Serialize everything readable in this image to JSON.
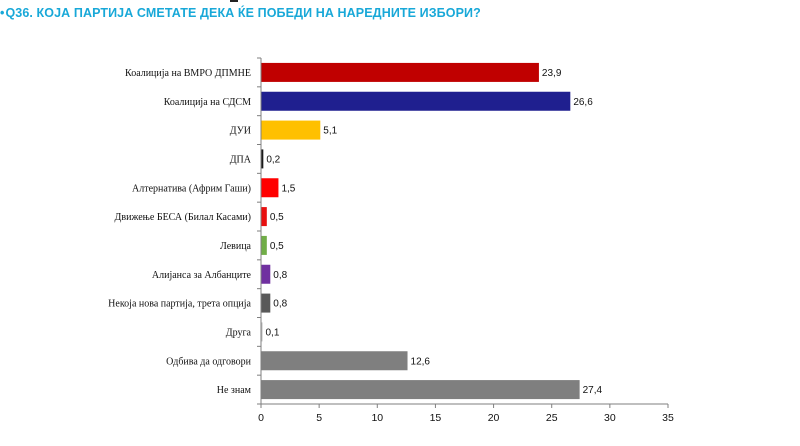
{
  "header": {
    "bullet": "•",
    "title": "Q36. КОЈА ПАРТИЈА СМЕТАТЕ ДЕКА ЌЕ ПОБЕДИ НА НАРЕДНИТЕ ИЗБОРИ?"
  },
  "colors": {
    "title": "#18a8d8",
    "axis": "#7f7f7f"
  },
  "chart_data": {
    "type": "bar",
    "orientation": "horizontal",
    "title": "Q36. КОЈА ПАРТИЈА СМЕТАТЕ ДЕКА ЌЕ ПОБЕДИ НА НАРЕДНИТЕ ИЗБОРИ?",
    "xlabel": "",
    "ylabel": "",
    "xlim": [
      0,
      35
    ],
    "xticks": [
      0,
      5,
      10,
      15,
      20,
      25,
      30,
      35
    ],
    "grid": false,
    "categories": [
      "Коалиција на ВМРО ДПМНЕ",
      "Коалиција на СДСМ",
      "ДУИ",
      "ДПА",
      "Алтернатива (Африм Гаши)",
      "Движење БЕСА (Билал Касами)",
      "Левица",
      "Алијанса за Албанците",
      "Некоја нова партија, трета опција",
      "Друга",
      "Одбива да одговори",
      "Не знам"
    ],
    "values": [
      23.9,
      26.6,
      5.1,
      0.2,
      1.5,
      0.5,
      0.5,
      0.8,
      0.8,
      0.1,
      12.6,
      27.4
    ],
    "value_labels": [
      "23,9",
      "26,6",
      "5,1",
      "0,2",
      "1,5",
      "0,5",
      "0,5",
      "0,8",
      "0,8",
      "0,1",
      "12,6",
      "27,4"
    ],
    "bar_colors": [
      "#c00000",
      "#1f1f8f",
      "#ffc000",
      "#1a1a1a",
      "#ff0000",
      "#e81010",
      "#70ad47",
      "#7030a0",
      "#595959",
      "#bfbfbf",
      "#7f7f7f",
      "#7f7f7f"
    ]
  }
}
